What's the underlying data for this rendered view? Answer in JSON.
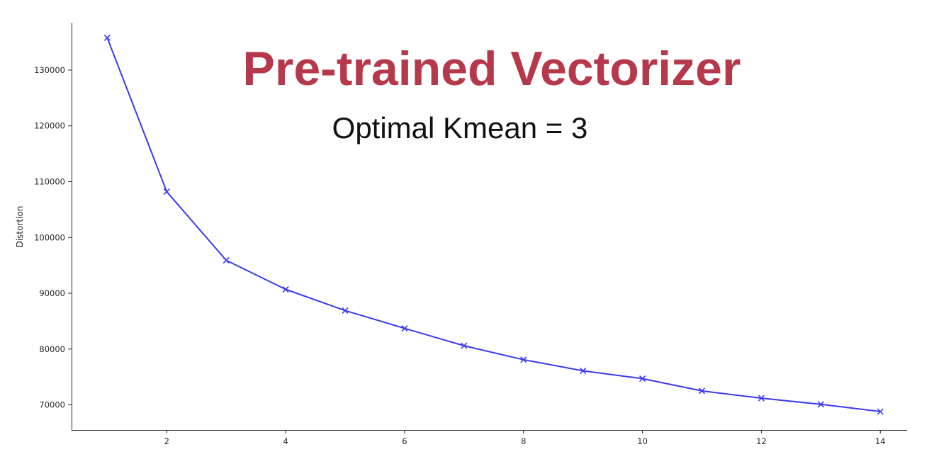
{
  "chart_data": {
    "type": "line",
    "title": "Pre-trained Vectorizer",
    "subtitle": "Optimal Kmean = 3",
    "xlabel": "",
    "ylabel": "Distortion",
    "xlim": [
      0.4,
      14.45
    ],
    "ylim": [
      65500,
      138500
    ],
    "xticks": [
      2,
      4,
      6,
      8,
      10,
      12,
      14
    ],
    "yticks": [
      70000,
      80000,
      90000,
      100000,
      110000,
      120000,
      130000
    ],
    "grid": false,
    "marker": "x",
    "line_color": "#3a3af0",
    "series": [
      {
        "x": [
          1,
          2,
          3,
          4,
          5,
          6,
          7,
          8,
          9,
          10,
          11,
          12,
          13,
          14
        ],
        "values": [
          135800,
          108200,
          95900,
          90700,
          86900,
          83700,
          80600,
          78100,
          76100,
          74700,
          72500,
          71200,
          70100,
          68800
        ]
      }
    ]
  }
}
